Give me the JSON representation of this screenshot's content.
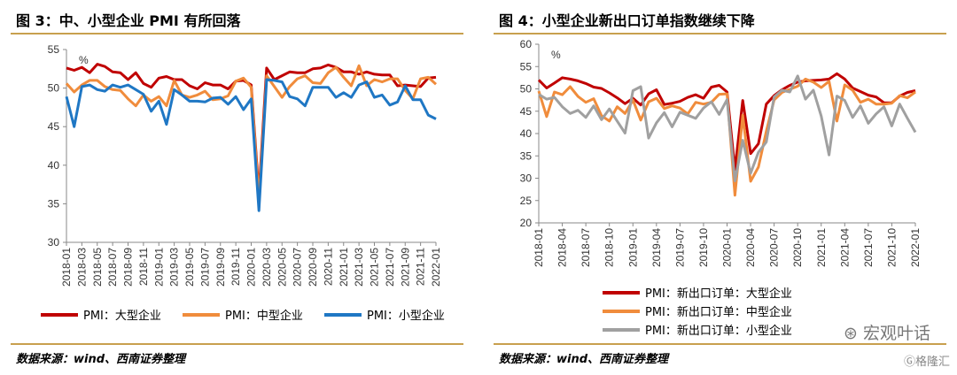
{
  "left": {
    "title": "图 3：中、小型企业 PMI 有所回落",
    "source": "数据来源：wind、西南证券整理",
    "unit": "%"
  },
  "right": {
    "title": "图 4：小型企业新出口订单指数继续下降",
    "source": "数据来源：wind、西南证券整理",
    "unit": "%"
  },
  "watermark": {
    "main": "宏观叶话",
    "corner": "格隆汇"
  },
  "colors": {
    "large": "#c00000",
    "medium": "#f08c3c",
    "small": "#1f77c4",
    "gray": "#a0a0a0",
    "rule": "#c8a04e"
  },
  "chart_data": [
    {
      "type": "line",
      "title": "中、小型企业 PMI 有所回落",
      "ylim": [
        30,
        55
      ],
      "yticks": [
        30,
        35,
        40,
        45,
        50,
        55
      ],
      "x": [
        "2018-01",
        "2018-02",
        "2018-03",
        "2018-04",
        "2018-05",
        "2018-06",
        "2018-07",
        "2018-08",
        "2018-09",
        "2018-10",
        "2018-11",
        "2018-12",
        "2019-01",
        "2019-02",
        "2019-03",
        "2019-04",
        "2019-05",
        "2019-06",
        "2019-07",
        "2019-08",
        "2019-09",
        "2019-10",
        "2019-11",
        "2019-12",
        "2020-01",
        "2020-02",
        "2020-03",
        "2020-04",
        "2020-05",
        "2020-06",
        "2020-07",
        "2020-08",
        "2020-09",
        "2020-10",
        "2020-11",
        "2020-12",
        "2021-01",
        "2021-02",
        "2021-03",
        "2021-04",
        "2021-05",
        "2021-06",
        "2021-07",
        "2021-08",
        "2021-09",
        "2021-10",
        "2021-11",
        "2021-12",
        "2022-01"
      ],
      "xticklabels": [
        "2018-01",
        "2018-03",
        "2018-05",
        "2018-07",
        "2018-09",
        "2018-11",
        "2019-01",
        "2019-03",
        "2019-05",
        "2019-07",
        "2019-09",
        "2019-11",
        "2020-01",
        "2020-03",
        "2020-05",
        "2020-07",
        "2020-09",
        "2020-11",
        "2021-01",
        "2021-03",
        "2021-05",
        "2021-07",
        "2021-09",
        "2021-11",
        "2022-01"
      ],
      "series": [
        {
          "name": "PMI：大型企业",
          "color": "#c00000",
          "values": [
            52.6,
            52.3,
            52.7,
            52.0,
            53.1,
            52.8,
            52.1,
            52.0,
            51.1,
            52.0,
            50.6,
            50.1,
            51.3,
            51.5,
            51.1,
            51.1,
            50.3,
            49.9,
            50.7,
            50.4,
            50.4,
            49.9,
            50.9,
            51.0,
            50.4,
            36.3,
            52.6,
            51.1,
            51.6,
            52.1,
            52.0,
            52.0,
            52.5,
            52.6,
            53.0,
            52.7,
            52.1,
            52.1,
            51.8,
            52.1,
            51.8,
            51.7,
            51.7,
            50.3,
            50.4,
            50.3,
            50.2,
            51.3,
            51.4
          ]
        },
        {
          "name": "PMI：中型企业",
          "color": "#f08c3c",
          "values": [
            50.6,
            49.5,
            50.4,
            51.0,
            51.0,
            50.2,
            49.8,
            49.7,
            48.6,
            47.7,
            49.1,
            48.3,
            48.9,
            47.7,
            51.0,
            49.1,
            48.8,
            49.1,
            49.6,
            48.5,
            48.6,
            49.0,
            50.9,
            51.3,
            50.1,
            35.5,
            51.6,
            50.2,
            48.8,
            50.2,
            51.2,
            51.6,
            50.7,
            50.6,
            52.0,
            52.7,
            51.4,
            50.3,
            52.9,
            50.3,
            51.1,
            50.8,
            51.2,
            51.2,
            49.7,
            48.6,
            51.2,
            51.4,
            50.5
          ]
        },
        {
          "name": "PMI：小型企业",
          "color": "#1f77c4",
          "values": [
            48.9,
            45.0,
            50.2,
            50.4,
            49.8,
            49.6,
            50.4,
            50.1,
            50.4,
            49.8,
            49.2,
            47.0,
            48.3,
            45.3,
            49.8,
            49.1,
            48.3,
            48.3,
            48.2,
            48.7,
            48.8,
            47.9,
            48.9,
            47.2,
            48.6,
            34.1,
            51.1,
            51.0,
            50.8,
            48.9,
            48.6,
            47.7,
            50.1,
            50.1,
            50.1,
            48.8,
            49.4,
            48.8,
            50.4,
            50.8,
            48.8,
            49.1,
            47.8,
            48.2,
            50.3,
            48.5,
            48.5,
            46.5,
            46.0
          ]
        }
      ]
    },
    {
      "type": "line",
      "title": "小型企业新出口订单指数继续下降",
      "ylim": [
        20,
        60
      ],
      "yticks": [
        20,
        25,
        30,
        35,
        40,
        45,
        50,
        55,
        60
      ],
      "x": [
        "2018-01",
        "2018-02",
        "2018-03",
        "2018-04",
        "2018-05",
        "2018-06",
        "2018-07",
        "2018-08",
        "2018-09",
        "2018-10",
        "2018-11",
        "2018-12",
        "2019-01",
        "2019-02",
        "2019-03",
        "2019-04",
        "2019-05",
        "2019-06",
        "2019-07",
        "2019-08",
        "2019-09",
        "2019-10",
        "2019-11",
        "2019-12",
        "2020-01",
        "2020-02",
        "2020-03",
        "2020-04",
        "2020-05",
        "2020-06",
        "2020-07",
        "2020-08",
        "2020-09",
        "2020-10",
        "2020-11",
        "2020-12",
        "2021-01",
        "2021-02",
        "2021-03",
        "2021-04",
        "2021-05",
        "2021-06",
        "2021-07",
        "2021-08",
        "2021-09",
        "2021-10",
        "2021-11",
        "2021-12",
        "2022-01"
      ],
      "xticklabels": [
        "2018-01",
        "2018-04",
        "2018-07",
        "2018-10",
        "2019-01",
        "2019-04",
        "2019-07",
        "2019-10",
        "2020-01",
        "2020-04",
        "2020-07",
        "2020-10",
        "2021-01",
        "2021-04",
        "2021-07",
        "2021-10",
        "2022-01"
      ],
      "series": [
        {
          "name": "PMI：新出口订单：大型企业",
          "color": "#c00000",
          "values": [
            52.0,
            50.2,
            51.3,
            52.5,
            52.2,
            51.8,
            51.2,
            50.4,
            50.1,
            49.1,
            48.0,
            46.7,
            47.9,
            46.4,
            48.9,
            49.8,
            46.5,
            46.8,
            47.2,
            48.1,
            48.7,
            47.9,
            50.4,
            50.8,
            49.3,
            31.9,
            47.4,
            35.5,
            37.7,
            46.6,
            48.5,
            49.8,
            50.8,
            51.5,
            51.8,
            51.9,
            52.0,
            52.2,
            53.4,
            52.2,
            50.2,
            49.4,
            48.6,
            48.2,
            46.9,
            46.9,
            48.4,
            49.2,
            49.6
          ]
        },
        {
          "name": "PMI：新出口订单：中型企业",
          "color": "#f08c3c",
          "values": [
            49.5,
            43.8,
            49.3,
            48.7,
            50.5,
            48.3,
            47.0,
            47.8,
            44.0,
            42.8,
            46.0,
            44.5,
            47.5,
            43.0,
            47.1,
            47.9,
            45.6,
            46.2,
            45.7,
            44.4,
            47.0,
            46.6,
            47.0,
            48.8,
            48.9,
            26.2,
            44.1,
            29.3,
            32.5,
            40.5,
            47.5,
            49.2,
            49.9,
            50.6,
            52.2,
            51.5,
            50.3,
            51.7,
            42.8,
            50.9,
            49.7,
            47.0,
            47.7,
            46.6,
            46.6,
            46.8,
            48.5,
            48.0,
            49.3
          ]
        },
        {
          "name": "PMI：新出口订单：小型企业",
          "color": "#a0a0a0",
          "values": [
            48.8,
            47.7,
            48.1,
            46.0,
            44.5,
            45.2,
            43.6,
            46.2,
            43.1,
            45.5,
            42.8,
            40.1,
            49.6,
            50.5,
            39.0,
            42.4,
            44.7,
            41.5,
            44.8,
            44.1,
            43.4,
            45.7,
            47.1,
            44.3,
            47.6,
            29.4,
            38.5,
            31.1,
            35.8,
            38.1,
            48.2,
            49.7,
            49.3,
            52.9,
            47.7,
            49.7,
            43.9,
            35.2,
            48.4,
            47.4,
            43.6,
            46.2,
            42.3,
            44.4,
            46.0,
            41.7,
            46.6,
            43.4,
            40.3
          ]
        }
      ]
    }
  ]
}
